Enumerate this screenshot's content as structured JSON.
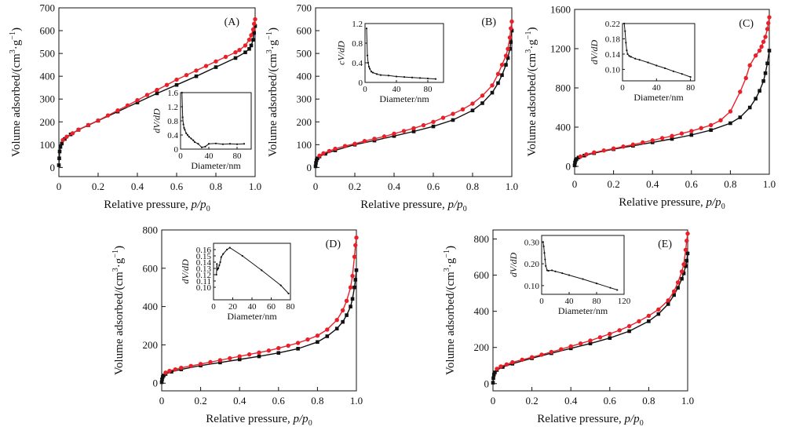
{
  "figure": {
    "x_label_main": "Relative pressure, ",
    "x_label_ratio": "p/p",
    "x_label_sub": "0",
    "y_label_main": "Volume adsorbed/(cm",
    "y_label_sup1": "3",
    "y_label_mid": "·g",
    "y_label_sup2": "−1",
    "y_label_end": ")",
    "inset_x_label": "Diameter/nm",
    "inset_y_label": "dV/dD",
    "inset_y_label_B": "cV/dD"
  },
  "colors": {
    "adsorption": "#111111",
    "desorption": "#e8202a",
    "axis": "#111111"
  },
  "chart_data": [
    {
      "type": "line",
      "panel": "(A)",
      "xlim": [
        0,
        1.0
      ],
      "ylim": [
        -40,
        700
      ],
      "xticks": [
        0.0,
        0.2,
        0.4,
        0.6,
        0.8,
        1.0
      ],
      "xtick_labels": [
        "0",
        "0.2",
        "0.4",
        "0.6",
        "0.8",
        "1.0"
      ],
      "yticks": [
        0,
        100,
        200,
        300,
        400,
        500,
        600,
        700
      ],
      "ytick_labels": [
        "0",
        "100",
        "200",
        "300",
        "400",
        "500",
        "600",
        "700"
      ],
      "series": [
        {
          "name": "adsorption",
          "x": [
            0.0,
            0.002,
            0.004,
            0.008,
            0.015,
            0.03,
            0.06,
            0.1,
            0.15,
            0.2,
            0.3,
            0.4,
            0.5,
            0.6,
            0.7,
            0.8,
            0.9,
            0.95,
            0.97,
            0.98,
            0.99,
            0.995,
            1.0
          ],
          "y": [
            10,
            40,
            70,
            90,
            105,
            125,
            145,
            165,
            185,
            205,
            245,
            285,
            325,
            362,
            400,
            440,
            480,
            505,
            520,
            535,
            560,
            590,
            620
          ]
        },
        {
          "name": "desorption",
          "x": [
            1.0,
            0.995,
            0.99,
            0.98,
            0.97,
            0.95,
            0.92,
            0.9,
            0.85,
            0.8,
            0.75,
            0.7,
            0.65,
            0.6,
            0.55,
            0.5,
            0.45,
            0.4,
            0.35,
            0.3,
            0.25,
            0.2,
            0.15,
            0.1,
            0.07,
            0.04,
            0.02
          ],
          "y": [
            650,
            630,
            605,
            580,
            560,
            535,
            515,
            505,
            485,
            465,
            445,
            425,
            405,
            385,
            362,
            340,
            318,
            295,
            272,
            250,
            228,
            206,
            186,
            166,
            150,
            135,
            120
          ]
        }
      ],
      "inset": {
        "xlim": [
          0,
          100
        ],
        "ylim": [
          0,
          1.6
        ],
        "xticks": [
          0,
          40,
          80
        ],
        "xtick_labels": [
          "0",
          "40",
          "80"
        ],
        "yticks": [
          0,
          0.4,
          0.8,
          1.2,
          1.6
        ],
        "ytick_labels": [
          "0",
          "0.4",
          "0.8",
          "1.2",
          "1.6"
        ],
        "x": [
          2,
          3,
          4,
          5,
          6,
          8,
          10,
          12,
          15,
          18,
          20,
          25,
          30,
          35,
          40,
          50,
          60,
          70,
          80,
          90
        ],
        "y": [
          1.6,
          0.9,
          0.7,
          0.6,
          0.55,
          0.45,
          0.4,
          0.35,
          0.3,
          0.25,
          0.2,
          0.15,
          0.05,
          0.07,
          0.15,
          0.16,
          0.14,
          0.15,
          0.14,
          0.15
        ]
      }
    },
    {
      "type": "line",
      "panel": "(B)",
      "xlim": [
        0,
        1.0
      ],
      "ylim": [
        -40,
        700
      ],
      "xticks": [
        0.0,
        0.2,
        0.4,
        0.6,
        0.8,
        1.0
      ],
      "xtick_labels": [
        "0",
        "0.2",
        "0.4",
        "0.6",
        "0.8",
        "1.0"
      ],
      "yticks": [
        0,
        100,
        200,
        300,
        400,
        500,
        600,
        700
      ],
      "ytick_labels": [
        "0",
        "100",
        "200",
        "300",
        "400",
        "500",
        "600",
        "700"
      ],
      "series": [
        {
          "name": "adsorption",
          "x": [
            0.0,
            0.002,
            0.005,
            0.01,
            0.02,
            0.05,
            0.1,
            0.2,
            0.3,
            0.4,
            0.5,
            0.6,
            0.7,
            0.8,
            0.85,
            0.9,
            0.93,
            0.95,
            0.97,
            0.98,
            0.99,
            0.995,
            1.0
          ],
          "y": [
            5,
            20,
            32,
            40,
            48,
            60,
            75,
            100,
            118,
            138,
            158,
            180,
            208,
            250,
            282,
            328,
            370,
            405,
            450,
            480,
            520,
            550,
            600
          ]
        },
        {
          "name": "desorption",
          "x": [
            1.0,
            0.995,
            0.99,
            0.98,
            0.97,
            0.95,
            0.93,
            0.9,
            0.85,
            0.8,
            0.75,
            0.7,
            0.65,
            0.6,
            0.55,
            0.5,
            0.45,
            0.4,
            0.35,
            0.3,
            0.25,
            0.2,
            0.15,
            0.1,
            0.07,
            0.04,
            0.02
          ],
          "y": [
            640,
            610,
            570,
            520,
            490,
            450,
            410,
            360,
            315,
            280,
            255,
            235,
            218,
            200,
            185,
            172,
            160,
            148,
            136,
            126,
            116,
            104,
            94,
            82,
            72,
            62,
            52
          ]
        }
      ],
      "inset": {
        "xlim": [
          0,
          100
        ],
        "ylim": [
          0,
          1.2
        ],
        "xticks": [
          0,
          40,
          80
        ],
        "xtick_labels": [
          "0",
          "40",
          "80"
        ],
        "yticks": [
          0,
          0.4,
          0.8,
          1.2
        ],
        "ytick_labels": [
          "0",
          "0.4",
          "0.8",
          "1.2"
        ],
        "x": [
          2,
          3,
          4,
          5,
          6,
          8,
          10,
          15,
          20,
          30,
          40,
          50,
          60,
          70,
          80,
          90
        ],
        "y": [
          1.1,
          0.55,
          0.4,
          0.32,
          0.28,
          0.22,
          0.2,
          0.17,
          0.15,
          0.14,
          0.12,
          0.11,
          0.1,
          0.09,
          0.08,
          0.07
        ]
      }
    },
    {
      "type": "line",
      "panel": "(C)",
      "xlim": [
        0,
        1.0
      ],
      "ylim": [
        -80,
        1600
      ],
      "xticks": [
        0.0,
        0.2,
        0.4,
        0.6,
        0.8,
        1.0
      ],
      "xtick_labels": [
        "0",
        "0.2",
        "0.4",
        "0.6",
        "0.8",
        "1.0"
      ],
      "yticks": [
        0,
        400,
        800,
        1200,
        1600
      ],
      "ytick_labels": [
        "0",
        "400",
        "800",
        "1200",
        "1600"
      ],
      "series": [
        {
          "name": "adsorption",
          "x": [
            0.0,
            0.002,
            0.005,
            0.01,
            0.02,
            0.05,
            0.1,
            0.2,
            0.3,
            0.4,
            0.5,
            0.6,
            0.7,
            0.8,
            0.85,
            0.9,
            0.93,
            0.95,
            0.97,
            0.98,
            0.99,
            1.0
          ],
          "y": [
            10,
            40,
            60,
            75,
            90,
            110,
            135,
            175,
            210,
            245,
            280,
            320,
            370,
            440,
            500,
            600,
            690,
            770,
            870,
            950,
            1050,
            1180
          ]
        },
        {
          "name": "desorption",
          "x": [
            1.0,
            0.995,
            0.99,
            0.98,
            0.97,
            0.96,
            0.95,
            0.93,
            0.9,
            0.88,
            0.85,
            0.8,
            0.75,
            0.7,
            0.65,
            0.6,
            0.55,
            0.5,
            0.45,
            0.4,
            0.35,
            0.3,
            0.25,
            0.2,
            0.15,
            0.1,
            0.06,
            0.03
          ],
          "y": [
            1520,
            1460,
            1400,
            1320,
            1270,
            1220,
            1180,
            1130,
            1030,
            900,
            760,
            560,
            470,
            420,
            390,
            360,
            335,
            310,
            288,
            265,
            244,
            222,
            202,
            182,
            162,
            142,
            122,
            100
          ]
        }
      ],
      "inset": {
        "xlim": [
          0,
          85
        ],
        "ylim": [
          0.07,
          0.22
        ],
        "xticks": [
          0,
          40,
          80
        ],
        "xtick_labels": [
          "0",
          "40",
          "80"
        ],
        "yticks": [
          0.1,
          0.14,
          0.18,
          0.22
        ],
        "ytick_labels": [
          "0.10",
          "0.14",
          "0.18",
          "0.22"
        ],
        "x": [
          2,
          3,
          4,
          5,
          6,
          8,
          10,
          15,
          20,
          30,
          40,
          50,
          60,
          70,
          80
        ],
        "y": [
          0.22,
          0.2,
          0.17,
          0.15,
          0.14,
          0.135,
          0.133,
          0.128,
          0.125,
          0.118,
          0.11,
          0.103,
          0.095,
          0.088,
          0.08
        ]
      }
    },
    {
      "type": "line",
      "panel": "(D)",
      "xlim": [
        0,
        1.0
      ],
      "ylim": [
        -40,
        800
      ],
      "xticks": [
        0.0,
        0.2,
        0.4,
        0.6,
        0.8,
        1.0
      ],
      "xtick_labels": [
        "0",
        "0.2",
        "0.4",
        "0.6",
        "0.8",
        "1.0"
      ],
      "yticks": [
        0,
        200,
        400,
        600,
        800
      ],
      "ytick_labels": [
        "0",
        "200",
        "400",
        "600",
        "800"
      ],
      "series": [
        {
          "name": "adsorption",
          "x": [
            0.0,
            0.002,
            0.005,
            0.01,
            0.02,
            0.05,
            0.1,
            0.2,
            0.3,
            0.4,
            0.5,
            0.6,
            0.7,
            0.8,
            0.85,
            0.9,
            0.93,
            0.95,
            0.97,
            0.98,
            0.99,
            0.995,
            1.0
          ],
          "y": [
            5,
            20,
            32,
            40,
            48,
            60,
            72,
            92,
            108,
            124,
            140,
            158,
            180,
            215,
            245,
            285,
            320,
            355,
            400,
            440,
            500,
            540,
            590
          ]
        },
        {
          "name": "desorption",
          "x": [
            1.0,
            0.995,
            0.99,
            0.98,
            0.97,
            0.95,
            0.93,
            0.9,
            0.85,
            0.8,
            0.75,
            0.7,
            0.65,
            0.6,
            0.55,
            0.5,
            0.45,
            0.4,
            0.35,
            0.3,
            0.25,
            0.2,
            0.15,
            0.1,
            0.07,
            0.04,
            0.02
          ],
          "y": [
            760,
            720,
            660,
            560,
            500,
            430,
            380,
            330,
            280,
            248,
            228,
            210,
            196,
            183,
            170,
            160,
            150,
            140,
            130,
            120,
            110,
            100,
            90,
            80,
            72,
            64,
            55
          ]
        }
      ],
      "inset": {
        "xlim": [
          0,
          80
        ],
        "ylim": [
          0.08,
          0.17
        ],
        "xticks": [
          0,
          20,
          40,
          60,
          80
        ],
        "xtick_labels": [
          "0",
          "20",
          "40",
          "60",
          "80"
        ],
        "yticks": [
          0.1,
          0.11,
          0.12,
          0.13,
          0.14,
          0.15,
          0.16
        ],
        "ytick_labels": [
          "0.10",
          "0.11",
          "0.12",
          "0.13",
          "0.14",
          "0.15",
          "0.16"
        ],
        "x": [
          3,
          3.5,
          4,
          5,
          6,
          7,
          8,
          10,
          14,
          17,
          30,
          50,
          70,
          78
        ],
        "y": [
          0.12,
          0.137,
          0.128,
          0.13,
          0.135,
          0.14,
          0.148,
          0.153,
          0.16,
          0.163,
          0.15,
          0.127,
          0.103,
          0.09
        ]
      }
    },
    {
      "type": "line",
      "panel": "(E)",
      "xlim": [
        0,
        1.0
      ],
      "ylim": [
        -40,
        850
      ],
      "xticks": [
        0.0,
        0.2,
        0.4,
        0.6,
        0.8,
        1.0
      ],
      "xtick_labels": [
        "0",
        "0.2",
        "0.4",
        "0.6",
        "0.8",
        "1.0"
      ],
      "yticks": [
        0,
        200,
        400,
        600,
        800
      ],
      "ytick_labels": [
        "0",
        "200",
        "400",
        "600",
        "800"
      ],
      "series": [
        {
          "name": "adsorption",
          "x": [
            0.0,
            0.002,
            0.005,
            0.01,
            0.02,
            0.05,
            0.1,
            0.2,
            0.3,
            0.4,
            0.5,
            0.6,
            0.7,
            0.8,
            0.85,
            0.9,
            0.93,
            0.95,
            0.97,
            0.98,
            0.99,
            0.995,
            1.0
          ],
          "y": [
            5,
            30,
            50,
            62,
            75,
            92,
            110,
            140,
            168,
            195,
            222,
            252,
            290,
            345,
            385,
            440,
            490,
            530,
            580,
            610,
            650,
            680,
            720
          ]
        },
        {
          "name": "desorption",
          "x": [
            1.0,
            0.995,
            0.99,
            0.98,
            0.97,
            0.95,
            0.93,
            0.9,
            0.85,
            0.8,
            0.75,
            0.7,
            0.65,
            0.6,
            0.55,
            0.5,
            0.45,
            0.4,
            0.35,
            0.3,
            0.25,
            0.2,
            0.15,
            0.1,
            0.07,
            0.04,
            0.02
          ],
          "y": [
            830,
            790,
            740,
            660,
            620,
            560,
            510,
            460,
            410,
            375,
            345,
            318,
            295,
            275,
            256,
            238,
            222,
            206,
            190,
            175,
            160,
            146,
            132,
            118,
            106,
            95,
            82
          ]
        }
      ],
      "inset": {
        "xlim": [
          0,
          120
        ],
        "ylim": [
          0.06,
          0.33
        ],
        "xticks": [
          0,
          40,
          80,
          120
        ],
        "xtick_labels": [
          "0",
          "40",
          "80",
          "120"
        ],
        "yticks": [
          0.1,
          0.2,
          0.3
        ],
        "ytick_labels": [
          "0.10",
          "0.20",
          "0.30"
        ],
        "x": [
          2,
          3,
          4,
          5,
          6,
          8,
          10,
          15,
          20,
          30,
          40,
          60,
          80,
          100,
          110
        ],
        "y": [
          0.3,
          0.28,
          0.25,
          0.22,
          0.19,
          0.17,
          0.168,
          0.17,
          0.165,
          0.157,
          0.148,
          0.13,
          0.11,
          0.09,
          0.08
        ]
      }
    }
  ]
}
